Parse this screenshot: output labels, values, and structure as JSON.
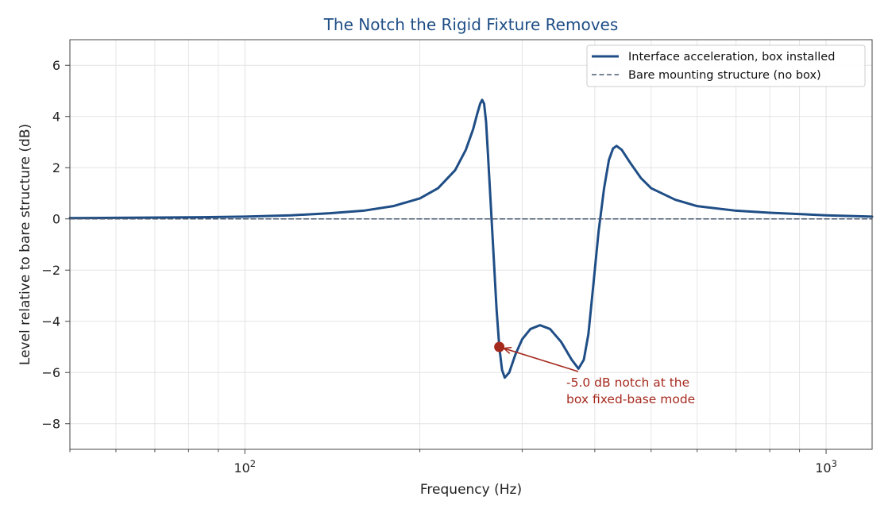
{
  "chart_data": {
    "type": "line",
    "title": "The Notch the Rigid Fixture Removes",
    "xlabel": "Frequency (Hz)",
    "ylabel": "Level relative to bare structure (dB)",
    "x_scale": "log",
    "xlim": [
      50,
      1200
    ],
    "ylim": [
      -9,
      7
    ],
    "x_major_ticks": [
      100,
      1000
    ],
    "x_major_tick_labels": [
      {
        "base": "10",
        "exp": "2"
      },
      {
        "base": "10",
        "exp": "3"
      }
    ],
    "y_ticks": [
      -8,
      -6,
      -4,
      -2,
      0,
      2,
      4,
      6
    ],
    "y_tick_labels": [
      "−8",
      "−6",
      "−4",
      "−2",
      "0",
      "2",
      "4",
      "6"
    ],
    "grid": true,
    "legend_position": "top-right",
    "series": [
      {
        "name": "Interface acceleration, box installed",
        "style": "solid",
        "color": "#1f4e86",
        "points": [
          [
            50,
            0.03
          ],
          [
            80,
            0.06
          ],
          [
            100,
            0.09
          ],
          [
            120,
            0.14
          ],
          [
            140,
            0.22
          ],
          [
            160,
            0.32
          ],
          [
            180,
            0.5
          ],
          [
            200,
            0.8
          ],
          [
            215,
            1.2
          ],
          [
            230,
            1.9
          ],
          [
            240,
            2.7
          ],
          [
            247,
            3.5
          ],
          [
            251,
            4.1
          ],
          [
            254,
            4.5
          ],
          [
            256,
            4.65
          ],
          [
            258,
            4.5
          ],
          [
            260,
            3.8
          ],
          [
            262,
            2.5
          ],
          [
            265,
            0.5
          ],
          [
            268,
            -1.5
          ],
          [
            271,
            -3.5
          ],
          [
            274,
            -5.0
          ],
          [
            277,
            -5.9
          ],
          [
            280,
            -6.2
          ],
          [
            285,
            -6.0
          ],
          [
            292,
            -5.3
          ],
          [
            300,
            -4.7
          ],
          [
            310,
            -4.3
          ],
          [
            322,
            -4.15
          ],
          [
            335,
            -4.3
          ],
          [
            350,
            -4.8
          ],
          [
            365,
            -5.5
          ],
          [
            375,
            -5.85
          ],
          [
            383,
            -5.5
          ],
          [
            390,
            -4.5
          ],
          [
            398,
            -2.5
          ],
          [
            406,
            -0.5
          ],
          [
            415,
            1.2
          ],
          [
            423,
            2.3
          ],
          [
            430,
            2.75
          ],
          [
            436,
            2.85
          ],
          [
            445,
            2.7
          ],
          [
            460,
            2.2
          ],
          [
            480,
            1.6
          ],
          [
            500,
            1.2
          ],
          [
            550,
            0.75
          ],
          [
            600,
            0.5
          ],
          [
            700,
            0.32
          ],
          [
            800,
            0.24
          ],
          [
            1000,
            0.14
          ],
          [
            1200,
            0.09
          ]
        ]
      },
      {
        "name": "Bare mounting structure (no box)",
        "style": "dashed",
        "color": "#4a5a70",
        "points": [
          [
            50,
            0
          ],
          [
            1200,
            0
          ]
        ]
      }
    ],
    "annotations": [
      {
        "text_lines": [
          "-5.0 dB notch at the",
          "box fixed-base mode"
        ],
        "x": 274,
        "y": -5.0,
        "color": "#a52a1e"
      }
    ]
  }
}
